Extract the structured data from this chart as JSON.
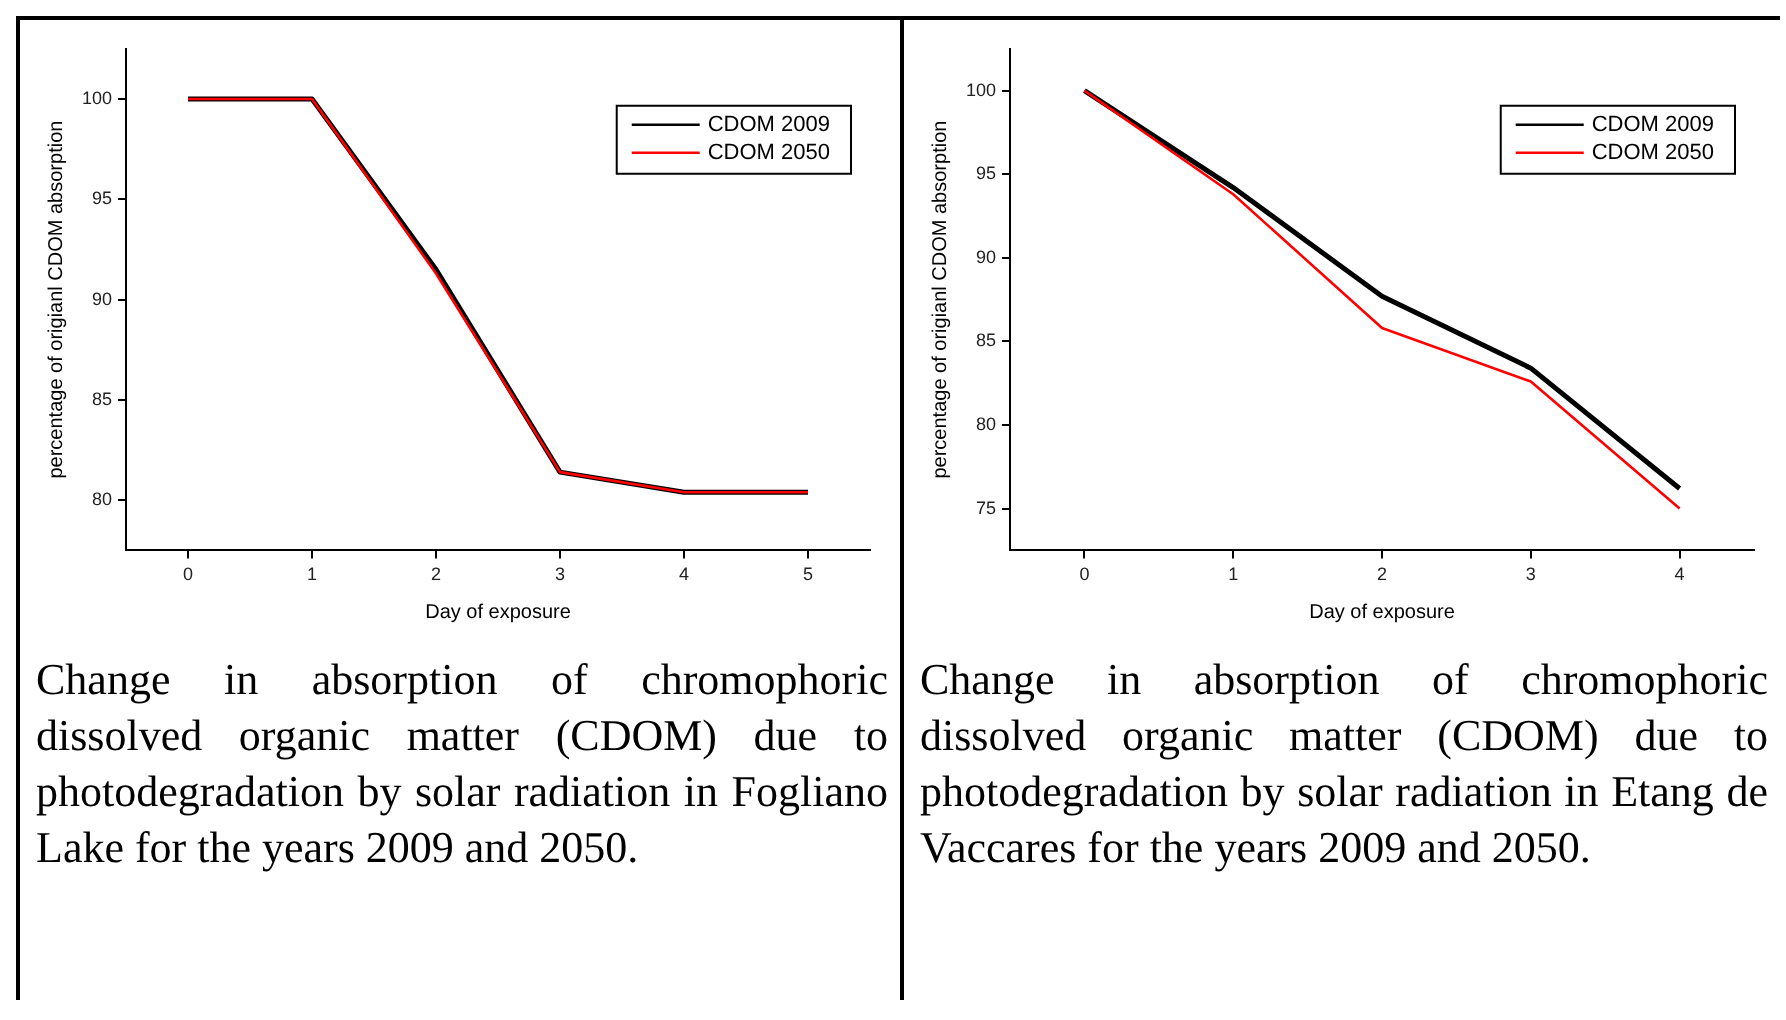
{
  "chart_data": [
    {
      "type": "line",
      "xlabel": "Day of exposure",
      "ylabel": "percentage of origianl CDOM absorption",
      "x": [
        0,
        1,
        2,
        3,
        4,
        5
      ],
      "xlim": [
        -0.5,
        5.5
      ],
      "xticks": [
        0,
        1,
        2,
        3,
        4,
        5
      ],
      "ylim": [
        77.5,
        102.5
      ],
      "yticks": [
        80,
        85,
        90,
        95,
        100
      ],
      "legend": "top right",
      "series": [
        {
          "name": "CDOM 2009",
          "color": "#000000",
          "values": [
            100,
            100,
            91.5,
            81.4,
            80.4,
            80.4
          ]
        },
        {
          "name": "CDOM 2050",
          "color": "#ff0000",
          "values": [
            100,
            100,
            91.3,
            81.4,
            80.4,
            80.4
          ]
        }
      ],
      "annotations": [
        "Change in absorption of chromophoric dissolved organic matter (CDOM) due to photodegradation by solar radiation in Fogliano Lake for the years 2009 and 2050."
      ]
    },
    {
      "type": "line",
      "xlabel": "Day of exposure",
      "ylabel": "percentage of origianl CDOM absorption",
      "x": [
        0,
        1,
        2,
        3,
        4
      ],
      "xlim": [
        -0.5,
        4.5
      ],
      "xticks": [
        0,
        1,
        2,
        3,
        4
      ],
      "ylim": [
        72.5,
        102.5
      ],
      "yticks": [
        75,
        80,
        85,
        90,
        95,
        100
      ],
      "legend": "top right",
      "series": [
        {
          "name": "CDOM 2009",
          "color": "#000000",
          "values": [
            100,
            94.2,
            87.7,
            83.4,
            76.2
          ]
        },
        {
          "name": "CDOM 2050",
          "color": "#ff0000",
          "values": [
            100,
            93.8,
            85.8,
            82.6,
            75
          ]
        }
      ],
      "annotations": [
        "Change in absorption of chromophoric dissolved organic matter (CDOM) due to photodegradation by solar radiation in Etang de Vaccares for the years 2009 and 2050."
      ]
    }
  ]
}
